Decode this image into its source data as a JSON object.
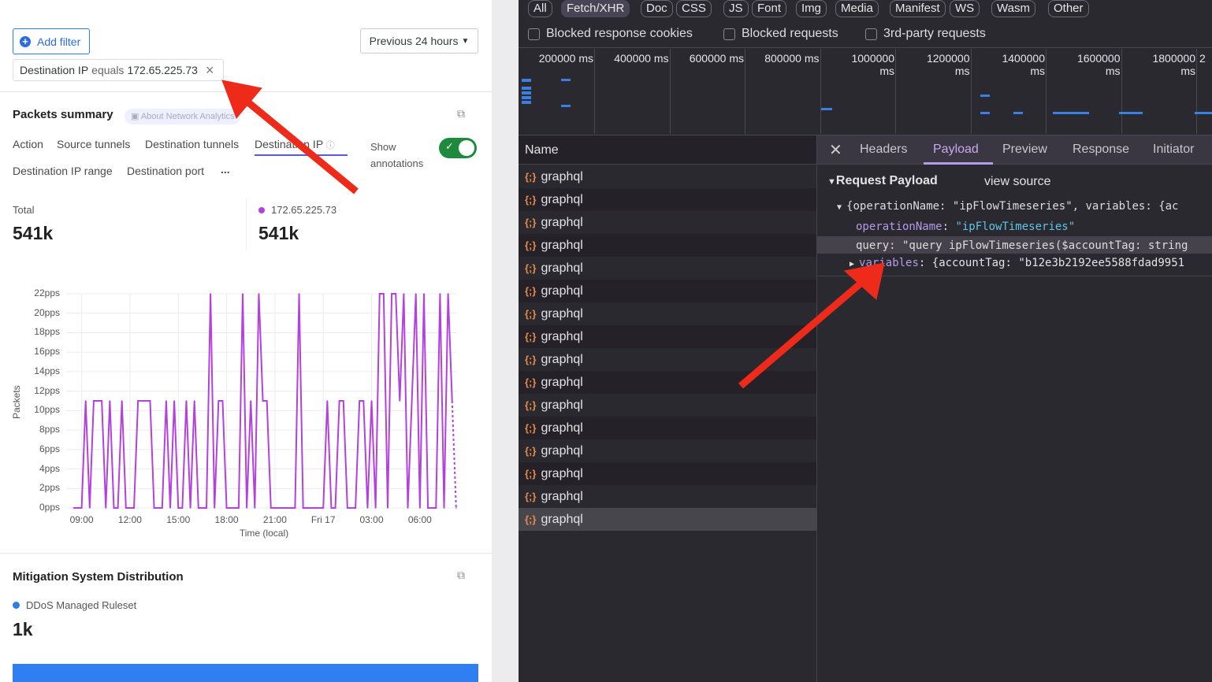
{
  "left": {
    "add_filter": "Add filter",
    "time_range": "Previous 24 hours",
    "filter_chip": {
      "field": "Destination IP",
      "operator": "equals",
      "value": "172.65.225.73"
    },
    "packets_summary": {
      "title": "Packets summary",
      "about_link": "About Network Analytics",
      "tabs": [
        "Action",
        "Source tunnels",
        "Destination tunnels",
        "Destination IP",
        "Destination IP range",
        "Destination port",
        "..."
      ],
      "active_tab": "Destination IP",
      "show_annotations": "Show annotations",
      "annotations_on": true,
      "total_label": "Total",
      "total_value": "541k",
      "series_label": "172.65.225.73",
      "series_value": "541k"
    },
    "mitigation": {
      "title": "Mitigation System Distribution",
      "legend": "DDoS Managed Ruleset",
      "value": "1k"
    }
  },
  "chart_data": {
    "type": "line",
    "xlabel": "Time (local)",
    "ylabel": "Packets",
    "ylim": [
      0,
      22
    ],
    "grid": true,
    "yticks": [
      "0pps",
      "2pps",
      "4pps",
      "6pps",
      "8pps",
      "10pps",
      "12pps",
      "14pps",
      "16pps",
      "18pps",
      "20pps",
      "22pps"
    ],
    "xticks": [
      "09:00",
      "12:00",
      "15:00",
      "18:00",
      "21:00",
      "Fri 17",
      "03:00",
      "06:00"
    ],
    "color": "#b440e0",
    "series": [
      {
        "name": "172.65.225.73",
        "points": [
          [
            "08:30",
            0
          ],
          [
            "09:00",
            0
          ],
          [
            "09:15",
            11
          ],
          [
            "09:30",
            0
          ],
          [
            "09:45",
            11
          ],
          [
            "10:15",
            11
          ],
          [
            "10:30",
            0
          ],
          [
            "10:45",
            11
          ],
          [
            "11:00",
            0
          ],
          [
            "11:15",
            0
          ],
          [
            "11:30",
            11
          ],
          [
            "11:45",
            0
          ],
          [
            "12:15",
            0
          ],
          [
            "12:30",
            11
          ],
          [
            "13:15",
            11
          ],
          [
            "13:30",
            0
          ],
          [
            "14:00",
            0
          ],
          [
            "14:15",
            11
          ],
          [
            "14:30",
            0
          ],
          [
            "14:45",
            11
          ],
          [
            "15:00",
            0
          ],
          [
            "15:15",
            0
          ],
          [
            "15:30",
            11
          ],
          [
            "15:45",
            0
          ],
          [
            "16:00",
            11
          ],
          [
            "16:15",
            0
          ],
          [
            "16:45",
            0
          ],
          [
            "17:00",
            22
          ],
          [
            "17:15",
            0
          ],
          [
            "17:30",
            11
          ],
          [
            "17:45",
            11
          ],
          [
            "18:00",
            0
          ],
          [
            "18:45",
            0
          ],
          [
            "19:00",
            22
          ],
          [
            "19:15",
            0
          ],
          [
            "19:30",
            11
          ],
          [
            "19:45",
            0
          ],
          [
            "20:00",
            22
          ],
          [
            "20:15",
            11
          ],
          [
            "20:30",
            11
          ],
          [
            "20:45",
            0
          ],
          [
            "22:15",
            0
          ],
          [
            "22:30",
            22
          ],
          [
            "22:45",
            0
          ],
          [
            "00:00",
            0
          ],
          [
            "00:15",
            11
          ],
          [
            "00:30",
            0
          ],
          [
            "00:45",
            0
          ],
          [
            "01:00",
            11
          ],
          [
            "01:15",
            11
          ],
          [
            "01:30",
            0
          ],
          [
            "02:00",
            0
          ],
          [
            "02:15",
            11
          ],
          [
            "02:30",
            11
          ],
          [
            "02:45",
            0
          ],
          [
            "03:00",
            11
          ],
          [
            "03:15",
            0
          ],
          [
            "03:30",
            22
          ],
          [
            "03:45",
            22
          ],
          [
            "04:00",
            0
          ],
          [
            "04:15",
            22
          ],
          [
            "04:30",
            22
          ],
          [
            "04:45",
            11
          ],
          [
            "05:00",
            22
          ],
          [
            "05:15",
            0
          ],
          [
            "05:45",
            22
          ],
          [
            "06:00",
            0
          ],
          [
            "06:15",
            22
          ],
          [
            "06:30",
            0
          ],
          [
            "07:00",
            0
          ],
          [
            "07:15",
            22
          ],
          [
            "07:30",
            0
          ],
          [
            "07:45",
            22
          ],
          [
            "08:00",
            11
          ],
          [
            "08:15",
            0
          ]
        ]
      }
    ]
  },
  "devtools": {
    "filters": [
      "All",
      "Fetch/XHR",
      "Doc",
      "CSS",
      "JS",
      "Font",
      "Img",
      "Media",
      "Manifest",
      "WS",
      "Wasm",
      "Other"
    ],
    "active_filter": "Fetch/XHR",
    "checkboxes": [
      "Blocked response cookies",
      "Blocked requests",
      "3rd-party requests"
    ],
    "timeline": [
      "200000 ms",
      "400000 ms",
      "600000 ms",
      "800000 ms",
      "1000000 ms",
      "1200000 ms",
      "1400000 ms",
      "1600000 ms",
      "1800000 ms",
      "2"
    ],
    "name_header": "Name",
    "requests": [
      "graphql",
      "graphql",
      "graphql",
      "graphql",
      "graphql",
      "graphql",
      "graphql",
      "graphql",
      "graphql",
      "graphql",
      "graphql",
      "graphql",
      "graphql",
      "graphql",
      "graphql",
      "graphql"
    ],
    "detail_tabs": [
      "Headers",
      "Payload",
      "Preview",
      "Response",
      "Initiator"
    ],
    "active_detail_tab": "Payload",
    "payload": {
      "section": "Request Payload",
      "view_source": "view source",
      "summary": "{operationName: \"ipFlowTimeseries\", variables: {ac",
      "op_key": "operationName",
      "op_val": "\"ipFlowTimeseries\"",
      "query_line": "query: \"query ipFlowTimeseries($accountTag: string",
      "var_key": "variables",
      "var_val": ": {accountTag: \"b12e3b2192ee5588fdad9951"
    }
  }
}
